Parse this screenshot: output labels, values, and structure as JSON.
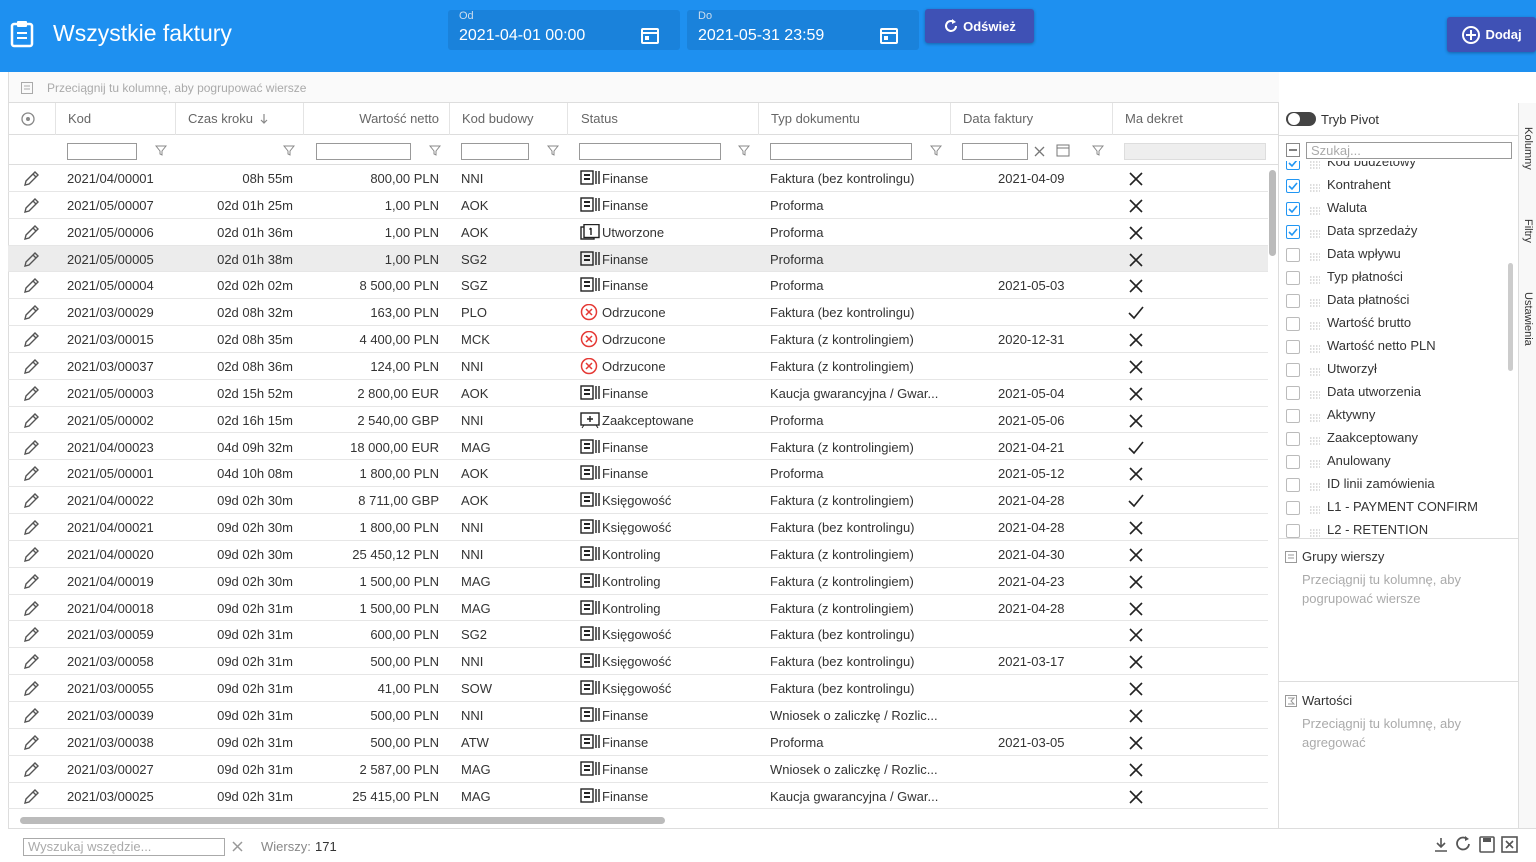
{
  "header": {
    "title": "Wszystkie faktury",
    "from_label": "Od",
    "from_value": "2021-04-01 00:00",
    "to_label": "Do",
    "to_value": "2021-05-31 23:59",
    "refresh": "Odśwież",
    "add": "Dodaj"
  },
  "group_placeholder": "Przeciągnij tu kolumnę, aby pogrupować wiersze",
  "table": {
    "columns": [
      "Kod",
      "Czas kroku",
      "Wartość netto",
      "Kod budowy",
      "Status",
      "Typ dokumentu",
      "Data faktury",
      "Ma dekret"
    ],
    "rows": [
      {
        "cells": [
          "2021/04/00001",
          "08h 55m",
          "800,00 PLN",
          "NNI",
          "Finanse",
          "Faktura (bez kontrolingu)",
          "2021-04-09"
        ],
        "dekret": false
      },
      {
        "cells": [
          "2021/05/00007",
          "02d 01h 25m",
          "1,00 PLN",
          "AOK",
          "Finanse",
          "Proforma",
          null
        ],
        "dekret": false
      },
      {
        "cells": [
          "2021/05/00006",
          "02d 01h 36m",
          "1,00 PLN",
          "AOK",
          "Utworzone",
          "Proforma",
          null
        ],
        "dekret": false
      },
      {
        "cells": [
          "2021/05/00005",
          "02d 01h 38m",
          "1,00 PLN",
          "SG2",
          "Finanse",
          "Proforma",
          null
        ],
        "dekret": false
      },
      {
        "cells": [
          "2021/05/00004",
          "02d 02h 02m",
          "8 500,00 PLN",
          "SGZ",
          "Finanse",
          "Proforma",
          "2021-05-03"
        ],
        "dekret": false
      },
      {
        "cells": [
          "2021/03/00029",
          "02d 08h 32m",
          "163,00 PLN",
          "PLO",
          "Odrzucone",
          "Faktura (bez kontrolingu)",
          null
        ],
        "dekret": true
      },
      {
        "cells": [
          "2021/03/00015",
          "02d 08h 35m",
          "4 400,00 PLN",
          "MCK",
          "Odrzucone",
          "Faktura (z kontrolingiem)",
          "2020-12-31"
        ],
        "dekret": false
      },
      {
        "cells": [
          "2021/03/00037",
          "02d 08h 36m",
          "124,00 PLN",
          "NNI",
          "Odrzucone",
          "Faktura (z kontrolingiem)",
          null
        ],
        "dekret": false
      },
      {
        "cells": [
          "2021/05/00003",
          "02d 15h 52m",
          "2 800,00 EUR",
          "AOK",
          "Finanse",
          "Kaucja gwarancyjna / Gwar...",
          "2021-05-04"
        ],
        "dekret": false
      },
      {
        "cells": [
          "2021/05/00002",
          "02d 16h 15m",
          "2 540,00 GBP",
          "NNI",
          "Zaakceptowane",
          "Proforma",
          "2021-05-06"
        ],
        "dekret": false
      },
      {
        "cells": [
          "2021/04/00023",
          "04d 09h 32m",
          "18 000,00 EUR",
          "MAG",
          "Finanse",
          "Faktura (z kontrolingiem)",
          "2021-04-21"
        ],
        "dekret": true
      },
      {
        "cells": [
          "2021/05/00001",
          "04d 10h 08m",
          "1 800,00 PLN",
          "AOK",
          "Finanse",
          "Proforma",
          "2021-05-12"
        ],
        "dekret": false
      },
      {
        "cells": [
          "2021/04/00022",
          "09d 02h 30m",
          "8 711,00 GBP",
          "AOK",
          "Księgowość",
          "Faktura (z kontrolingiem)",
          "2021-04-28"
        ],
        "dekret": true
      },
      {
        "cells": [
          "2021/04/00021",
          "09d 02h 30m",
          "1 800,00 PLN",
          "NNI",
          "Księgowość",
          "Faktura (bez kontrolingu)",
          "2021-04-28"
        ],
        "dekret": false
      },
      {
        "cells": [
          "2021/04/00020",
          "09d 02h 30m",
          "25 450,12 PLN",
          "NNI",
          "Kontroling",
          "Faktura (z kontrolingiem)",
          "2021-04-30"
        ],
        "dekret": false
      },
      {
        "cells": [
          "2021/04/00019",
          "09d 02h 30m",
          "1 500,00 PLN",
          "MAG",
          "Kontroling",
          "Faktura (z kontrolingiem)",
          "2021-04-23"
        ],
        "dekret": false
      },
      {
        "cells": [
          "2021/04/00018",
          "09d 02h 31m",
          "1 500,00 PLN",
          "MAG",
          "Kontroling",
          "Faktura (z kontrolingiem)",
          "2021-04-28"
        ],
        "dekret": false
      },
      {
        "cells": [
          "2021/03/00059",
          "09d 02h 31m",
          "600,00 PLN",
          "SG2",
          "Księgowość",
          "Faktura (bez kontrolingu)",
          null
        ],
        "dekret": false
      },
      {
        "cells": [
          "2021/03/00058",
          "09d 02h 31m",
          "500,00 PLN",
          "NNI",
          "Księgowość",
          "Faktura (bez kontrolingu)",
          "2021-03-17"
        ],
        "dekret": false
      },
      {
        "cells": [
          "2021/03/00055",
          "09d 02h 31m",
          "41,00 PLN",
          "SOW",
          "Księgowość",
          "Faktura (bez kontrolingu)",
          null
        ],
        "dekret": false
      },
      {
        "cells": [
          "2021/03/00039",
          "09d 02h 31m",
          "500,00 PLN",
          "NNI",
          "Finanse",
          "Wniosek o zaliczkę / Rozlic...",
          null
        ],
        "dekret": false
      },
      {
        "cells": [
          "2021/03/00038",
          "09d 02h 31m",
          "500,00 PLN",
          "ATW",
          "Finanse",
          "Proforma",
          "2021-03-05"
        ],
        "dekret": false
      },
      {
        "cells": [
          "2021/03/00027",
          "09d 02h 31m",
          "2 587,00 PLN",
          "MAG",
          "Finanse",
          "Wniosek o zaliczkę / Rozlic...",
          null
        ],
        "dekret": false
      },
      {
        "cells": [
          "2021/03/00025",
          "09d 02h 31m",
          "25 415,00 PLN",
          "MAG",
          "Finanse",
          "Kaucja gwarancyjna / Gwar...",
          null
        ],
        "dekret": false
      }
    ]
  },
  "side_panel": {
    "pivot": "Tryb Pivot",
    "search_placeholder": "Szukaj...",
    "columns": [
      {
        "name": "Kod budżetowy",
        "checked": true
      },
      {
        "name": "Kontrahent",
        "checked": true
      },
      {
        "name": "Waluta",
        "checked": true
      },
      {
        "name": "Data sprzedaży",
        "checked": true
      },
      {
        "name": "Data wpływu",
        "checked": false
      },
      {
        "name": "Typ płatności",
        "checked": false
      },
      {
        "name": "Data płatności",
        "checked": false
      },
      {
        "name": "Wartość brutto",
        "checked": false
      },
      {
        "name": "Wartość netto PLN",
        "checked": false
      },
      {
        "name": "Utworzył",
        "checked": false
      },
      {
        "name": "Data utworzenia",
        "checked": false
      },
      {
        "name": "Aktywny",
        "checked": false
      },
      {
        "name": "Zaakceptowany",
        "checked": false
      },
      {
        "name": "Anulowany",
        "checked": false
      },
      {
        "name": "ID linii zamówienia",
        "checked": false
      },
      {
        "name": "L1 - PAYMENT CONFIRM",
        "checked": false
      },
      {
        "name": "L2 - RETENTION",
        "checked": false
      }
    ],
    "row_groups": "Grupy wierszy",
    "row_groups_hint": "Przeciągnij tu kolumnę, aby pogrupować wiersze",
    "values": "Wartości",
    "values_hint": "Przeciągnij tu kolumnę, aby agregować",
    "tabs": [
      "Kolumny",
      "Filtry",
      "Ustawienia"
    ]
  },
  "footer": {
    "search_placeholder": "Wyszukaj wszędzie...",
    "rows_label": "Wierszy:",
    "rows_count": "171"
  }
}
